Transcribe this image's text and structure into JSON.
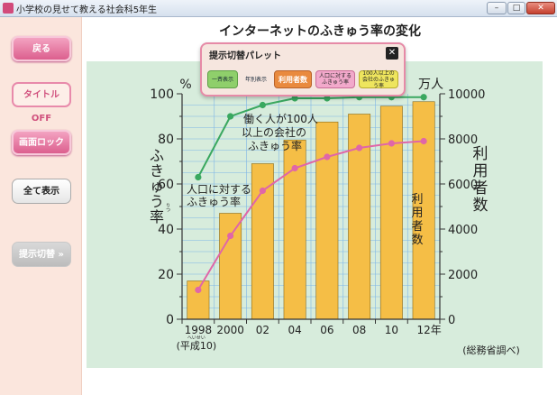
{
  "window": {
    "title": "小学校の見せて教える社会科5年生"
  },
  "sidebar": {
    "back_label": "戻る",
    "title_off_label": "タイトル OFF",
    "screen_lock_label": "画面ロック",
    "show_all_label": "全て表示",
    "switch_label": "提示切替",
    "switch_arrow": "»"
  },
  "palette": {
    "title": "提示切替パレット",
    "close_glyph": "✕",
    "buttons": [
      "一斉表示",
      "年別表示",
      "利用者数",
      "人口に対する\nふきゅう率",
      "100人以上の\n会社のふきゅう率"
    ]
  },
  "chart_data": {
    "type": "bar+line",
    "title": "インターネットのふきゅう率の変化",
    "categories": [
      "1998",
      "2000",
      "02",
      "04",
      "06",
      "08",
      "10",
      "12年"
    ],
    "category_sub": "(平成10)",
    "category_sub_ruby": "へいせい",
    "source": "(総務省調べ)",
    "left_axis": {
      "unit": "%",
      "label": "ふきゅう率",
      "label_ruby": "りつ",
      "ticks": [
        0,
        20,
        40,
        60,
        80,
        100
      ],
      "range": [
        0,
        100
      ]
    },
    "right_axis": {
      "unit": "万人",
      "label": "利用者数",
      "ticks": [
        0,
        2000,
        4000,
        6000,
        8000,
        10000
      ],
      "range": [
        0,
        10000
      ]
    },
    "series": [
      {
        "name": "利用者数",
        "kind": "bar",
        "axis": "right",
        "color": "#f5be46",
        "values": [
          1700,
          4700,
          6900,
          7950,
          8750,
          9100,
          9450,
          9650
        ]
      },
      {
        "name": "働く人が100人以上の会社のふきゅう率",
        "kind": "line",
        "axis": "left",
        "color": "#3aa860",
        "values": [
          63,
          90,
          95,
          98,
          98,
          98.5,
          98.5,
          98.5
        ]
      },
      {
        "name": "人口に対するふきゅう率",
        "kind": "line",
        "axis": "left",
        "color": "#e066a8",
        "values": [
          13,
          37,
          57,
          67,
          72,
          76,
          78,
          79
        ]
      }
    ],
    "annotations": {
      "company_line": "働く人が100人\n以上の会社の\nふきゅう率",
      "population_line": "人口に対する\nふきゅう率",
      "users_bar": "利用者数"
    }
  },
  "colors": {
    "chart_bg": "#d7ecdc",
    "bar": "#f5be46",
    "company_line": "#3aa860",
    "population_line": "#e066a8",
    "grid": "#333333",
    "blue_grid": "#7fb6e6"
  }
}
